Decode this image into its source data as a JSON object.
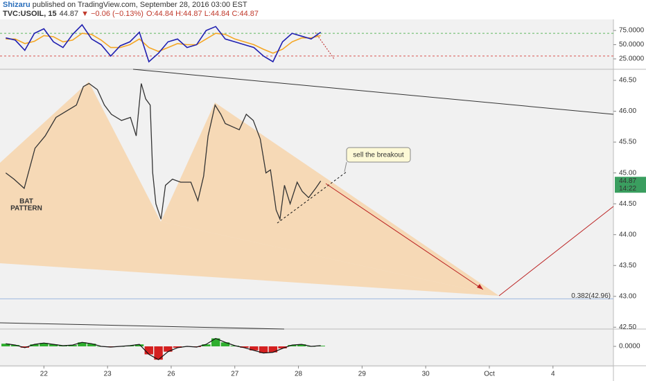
{
  "header": {
    "publisher": "Shizaru",
    "published": " published on TradingView.com, September 28, 2016 03:00 EST",
    "symbol": "TVC:USOIL, 15",
    "last": "44.87",
    "change": "▼ −0.06 (−0.13%)",
    "ohlc": "O:44.84 H:44.87 L:44.84 C:44.87"
  },
  "chart_data": [
    {
      "type": "line",
      "color": "#333333",
      "x": [
        -0.6,
        -0.47,
        -0.31,
        -0.14,
        0.02,
        0.19,
        0.35,
        0.51,
        0.62,
        0.71,
        0.84,
        0.95,
        1.06,
        1.22,
        1.36,
        1.45,
        1.53,
        1.6,
        1.67,
        1.71,
        1.76,
        1.84,
        1.91,
        2.02,
        2.15,
        2.31,
        2.42,
        2.51,
        2.58,
        2.69,
        2.78,
        2.85,
        2.96,
        3.07,
        3.18,
        3.29,
        3.4,
        3.49,
        3.56,
        3.65,
        3.71,
        3.78,
        3.87,
        3.98,
        4.06,
        4.16,
        4.27,
        4.35
      ],
      "values": [
        45.0,
        44.9,
        44.75,
        45.4,
        45.6,
        45.9,
        46.0,
        46.1,
        46.4,
        46.45,
        46.35,
        46.1,
        45.95,
        45.85,
        45.9,
        45.6,
        46.45,
        46.2,
        46.1,
        45.0,
        44.5,
        44.25,
        44.8,
        44.9,
        44.85,
        44.85,
        44.55,
        44.95,
        45.6,
        46.1,
        45.95,
        45.8,
        45.75,
        45.7,
        45.95,
        45.85,
        45.55,
        45.0,
        45.05,
        44.4,
        44.25,
        44.8,
        44.5,
        44.85,
        44.7,
        44.6,
        44.75,
        44.87
      ],
      "xlim": [
        -0.69,
        8.95
      ],
      "xticks": [
        {
          "value": 0,
          "label": "22"
        },
        {
          "value": 1,
          "label": "23"
        },
        {
          "value": 2,
          "label": "26"
        },
        {
          "value": 3,
          "label": "27"
        },
        {
          "value": 4,
          "label": "28"
        },
        {
          "value": 5,
          "label": "29"
        },
        {
          "value": 6,
          "label": "30"
        },
        {
          "value": 7,
          "label": "Oct"
        },
        {
          "value": 8,
          "label": "4"
        }
      ],
      "ylim": [
        42.47,
        46.68
      ],
      "yticks": [
        {
          "value": 46.5,
          "label": "46.50"
        },
        {
          "value": 46,
          "label": "46.00"
        },
        {
          "value": 45.5,
          "label": "45.50"
        },
        {
          "value": 45,
          "label": "45.00"
        },
        {
          "value": 44.5,
          "label": "44.50"
        },
        {
          "value": 44,
          "label": "44.00"
        },
        {
          "value": 43.5,
          "label": "43.50"
        },
        {
          "value": 43,
          "label": "43.00"
        },
        {
          "value": 42.5,
          "label": "42.50"
        }
      ],
      "last_price": {
        "value": 44.87,
        "label": "44.87"
      },
      "countdown": "14:22",
      "fib": {
        "value": 42.96,
        "label": "0.382(42.96)"
      },
      "pattern_label": [
        "BAT",
        "PATTERN"
      ],
      "callout": "sell the breakout"
    },
    {
      "type": "line",
      "x": [
        -0.6,
        -0.45,
        -0.3,
        -0.15,
        0,
        0.15,
        0.3,
        0.45,
        0.6,
        0.75,
        0.9,
        1.05,
        1.2,
        1.35,
        1.5,
        1.65,
        1.8,
        1.95,
        2.1,
        2.25,
        2.4,
        2.55,
        2.7,
        2.85,
        3.0,
        3.15,
        3.3,
        3.45,
        3.6,
        3.75,
        3.9,
        4.05,
        4.2,
        4.35
      ],
      "series": [
        {
          "color": "#f5a623",
          "values": [
            60,
            60,
            52,
            56,
            66,
            64,
            55,
            58,
            70,
            68,
            58,
            45,
            45,
            50,
            60,
            45,
            38,
            45,
            52,
            50,
            50,
            60,
            70,
            68,
            60,
            55,
            50,
            42,
            35,
            42,
            55,
            62,
            62,
            66
          ]
        },
        {
          "color": "#1f1fb0",
          "values": [
            62,
            58,
            40,
            70,
            78,
            55,
            45,
            68,
            85,
            60,
            50,
            30,
            48,
            55,
            72,
            20,
            35,
            55,
            60,
            45,
            50,
            75,
            82,
            60,
            55,
            50,
            45,
            30,
            20,
            55,
            70,
            65,
            60,
            72
          ]
        }
      ],
      "levels": [
        {
          "value": 70,
          "color": "#5cb85c"
        },
        {
          "value": 30,
          "color": "#d9534f"
        }
      ],
      "ylim": [
        6.7,
        94.5
      ],
      "yticks": [
        {
          "value": 75,
          "label": "75.0000"
        },
        {
          "value": 50,
          "label": "50.0000"
        },
        {
          "value": 25,
          "label": "25.0000"
        }
      ]
    },
    {
      "type": "bar",
      "color_up": "#2eae2e",
      "color_down": "#d42020",
      "x": [
        -0.6,
        -0.45,
        -0.3,
        -0.15,
        0,
        0.15,
        0.3,
        0.45,
        0.6,
        0.75,
        0.9,
        1.05,
        1.2,
        1.35,
        1.5,
        1.65,
        1.8,
        1.95,
        2.1,
        2.25,
        2.4,
        2.55,
        2.7,
        2.85,
        3.0,
        3.15,
        3.3,
        3.45,
        3.6,
        3.75,
        3.9,
        4.05,
        4.2,
        4.35
      ],
      "values": [
        0.04,
        0.02,
        -0.02,
        0.03,
        0.05,
        0.03,
        0.01,
        0.02,
        0.06,
        0.04,
        0.0,
        -0.01,
        0.0,
        0.01,
        0.03,
        -0.12,
        -0.2,
        -0.08,
        -0.02,
        0.0,
        -0.01,
        0.03,
        0.12,
        0.06,
        0.01,
        -0.02,
        -0.06,
        -0.1,
        -0.09,
        -0.03,
        0.02,
        0.03,
        0.0,
        0.01
      ],
      "ylim": [
        -0.25,
        0.25
      ],
      "yticks": [
        {
          "value": 0,
          "label": "0.0000"
        }
      ]
    }
  ]
}
